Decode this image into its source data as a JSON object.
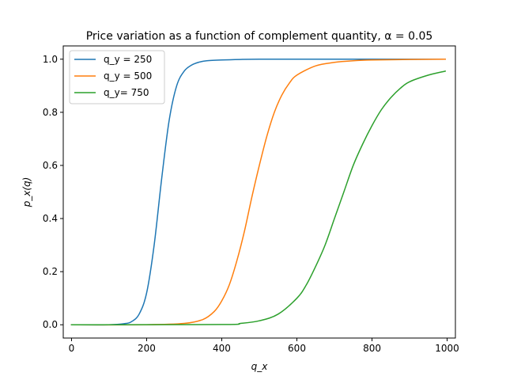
{
  "chart_data": {
    "type": "line",
    "title": "Price variation as a function of complement quantity, α = 0.05",
    "xlabel": "q_x",
    "ylabel": "p_x(q)",
    "xlim": [
      -22,
      1022
    ],
    "ylim": [
      -0.05,
      1.05
    ],
    "xticks": [
      0,
      200,
      400,
      600,
      800,
      1000
    ],
    "yticks": [
      0.0,
      0.2,
      0.4,
      0.6,
      0.8,
      1.0
    ],
    "xtick_labels": [
      "0",
      "200",
      "400",
      "600",
      "800",
      "1000"
    ],
    "ytick_labels": [
      "0.0",
      "0.2",
      "0.4",
      "0.6",
      "0.8",
      "1.0"
    ],
    "grid": false,
    "legend_position": "top-left",
    "alpha": 0.05,
    "series": [
      {
        "name": "q_y = 250",
        "color": "#1f77b4",
        "x": [
          0,
          100,
          140,
          160,
          180,
          200,
          220,
          240,
          260,
          280,
          300,
          320,
          340,
          360,
          400,
          450,
          500,
          600,
          800,
          995
        ],
        "y": [
          0.0,
          0.0,
          0.004,
          0.012,
          0.04,
          0.12,
          0.3,
          0.55,
          0.77,
          0.9,
          0.955,
          0.978,
          0.989,
          0.994,
          0.997,
          0.999,
          1.0,
          1.0,
          1.0,
          1.0
        ]
      },
      {
        "name": "q_y = 500",
        "color": "#ff7f0e",
        "x": [
          0,
          200,
          300,
          350,
          380,
          400,
          420,
          440,
          460,
          480,
          500,
          520,
          540,
          560,
          580,
          600,
          650,
          700,
          750,
          800,
          900,
          995
        ],
        "y": [
          0.0,
          0.0,
          0.005,
          0.02,
          0.05,
          0.09,
          0.15,
          0.24,
          0.35,
          0.48,
          0.6,
          0.71,
          0.8,
          0.865,
          0.91,
          0.94,
          0.975,
          0.988,
          0.994,
          0.997,
          0.999,
          1.0
        ]
      },
      {
        "name": "q_y= 750",
        "color": "#2ca02c",
        "x": [
          0,
          400,
          450,
          500,
          550,
          600,
          625,
          650,
          675,
          700,
          725,
          750,
          775,
          800,
          825,
          850,
          875,
          900,
          950,
          995
        ],
        "y": [
          0.0,
          0.001,
          0.005,
          0.015,
          0.04,
          0.1,
          0.15,
          0.22,
          0.3,
          0.4,
          0.5,
          0.6,
          0.68,
          0.75,
          0.81,
          0.855,
          0.89,
          0.915,
          0.94,
          0.955
        ]
      }
    ]
  }
}
